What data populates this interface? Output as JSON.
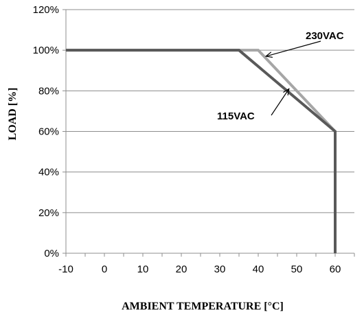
{
  "chart_data": {
    "type": "line",
    "xlabel": "AMBIENT TEMPERATURE [°C]",
    "ylabel": "LOAD [%]",
    "xlim": [
      -10,
      65
    ],
    "ylim": [
      0,
      120
    ],
    "x_ticks": [
      -10,
      0,
      10,
      20,
      30,
      40,
      50,
      60
    ],
    "x_tick_labels": [
      "-10",
      "0",
      "10",
      "20",
      "30",
      "40",
      "50",
      "60"
    ],
    "y_ticks": [
      0,
      20,
      40,
      60,
      80,
      100,
      120
    ],
    "y_tick_labels": [
      "0%",
      "20%",
      "40%",
      "60%",
      "80%",
      "100%",
      "120%"
    ],
    "grid": "horizontal",
    "series": [
      {
        "name": "115VAC",
        "color": "#595959",
        "x": [
          -10,
          35,
          60,
          60
        ],
        "y": [
          100,
          100,
          60,
          0
        ]
      },
      {
        "name": "230VAC",
        "color": "#a6a6a6",
        "x": [
          -10,
          40,
          60,
          60
        ],
        "y": [
          100,
          100,
          60,
          0
        ]
      }
    ],
    "annotations": [
      {
        "text": "230VAC",
        "series": 1,
        "arrow_to": [
          42,
          97
        ]
      },
      {
        "text": "115VAC",
        "series": 0,
        "arrow_to": [
          48,
          81
        ]
      }
    ]
  }
}
